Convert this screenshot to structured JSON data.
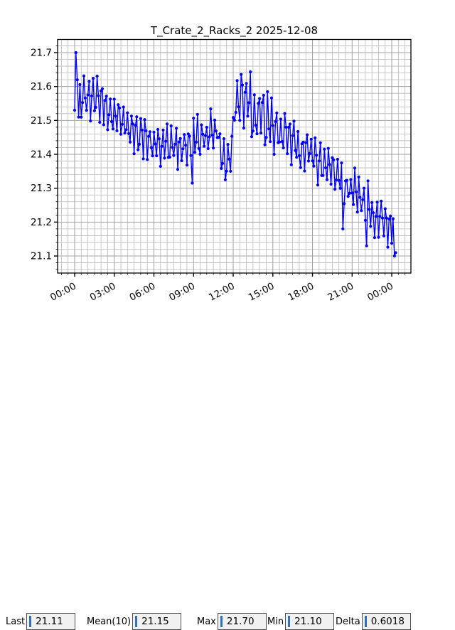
{
  "title": "T_Crate_2_Racks_2 2025-12-08",
  "chart_data": {
    "type": "line",
    "title": "T_Crate_2_Racks_2 2025-12-08",
    "series_name": "T_Crate_2_Racks_2",
    "line_color": "#0000ff",
    "marker": "circle",
    "grid": {
      "major": true,
      "minor": true,
      "color": "#a6a6a6"
    },
    "xlabel": "",
    "ylabel": "",
    "xlim_hours": [
      -1.29,
      25.45
    ],
    "ylim": [
      21.0497,
      21.7388
    ],
    "x_ticks": {
      "hours": [
        0,
        3,
        6,
        9,
        12,
        15,
        18,
        21,
        24
      ],
      "labels": [
        "00:00",
        "03:00",
        "06:00",
        "09:00",
        "12:00",
        "15:00",
        "18:00",
        "21:00",
        "00:00"
      ],
      "minor_step_hours": 0.5
    },
    "y_ticks": {
      "values": [
        21.1,
        21.2,
        21.3,
        21.4,
        21.5,
        21.6,
        21.7
      ],
      "labels": [
        "21.1",
        "21.2",
        "21.3",
        "21.4",
        "21.5",
        "21.6",
        "21.7"
      ],
      "minor_step": 0.02
    },
    "start_hour": 0,
    "end_hour": 24.3,
    "sample_step_min": 6,
    "seed": 12,
    "oscillation": {
      "phase_step_rad": 1.9,
      "phase_offset_rad": 0.6,
      "sine_weight": 0.85,
      "jitter_weight": 0.9
    },
    "value_clamp": [
      21.1,
      21.7
    ],
    "envelope_hour_mid_amp": [
      [
        0,
        21.58,
        0.065
      ],
      [
        1,
        21.565,
        0.065
      ],
      [
        2,
        21.555,
        0.065
      ],
      [
        3,
        21.525,
        0.065
      ],
      [
        4,
        21.49,
        0.065
      ],
      [
        5,
        21.46,
        0.06
      ],
      [
        6,
        21.44,
        0.06
      ],
      [
        7,
        21.425,
        0.06
      ],
      [
        8,
        21.42,
        0.06
      ],
      [
        9,
        21.435,
        0.06
      ],
      [
        10,
        21.46,
        0.06
      ],
      [
        10.8,
        21.48,
        0.055
      ],
      [
        11.1,
        21.4,
        0.05
      ],
      [
        11.8,
        21.38,
        0.05
      ],
      [
        12.1,
        21.55,
        0.07
      ],
      [
        12.6,
        21.575,
        0.08
      ],
      [
        13.5,
        21.535,
        0.09
      ],
      [
        14.5,
        21.51,
        0.08
      ],
      [
        15.5,
        21.475,
        0.07
      ],
      [
        16.5,
        21.435,
        0.065
      ],
      [
        17.5,
        21.41,
        0.065
      ],
      [
        18.5,
        21.385,
        0.06
      ],
      [
        19.5,
        21.35,
        0.06
      ],
      [
        20.5,
        21.31,
        0.06
      ],
      [
        21.5,
        21.275,
        0.06
      ],
      [
        22.5,
        21.235,
        0.06
      ],
      [
        23.3,
        21.21,
        0.055
      ],
      [
        24.0,
        21.175,
        0.045
      ],
      [
        24.3,
        21.12,
        0.025
      ]
    ],
    "head_values": [
      21.53,
      21.7,
      21.62,
      21.51
    ],
    "tail_values": [
      21.21,
      21.1,
      21.11
    ],
    "spot_overrides_hour_value": [
      [
        8.9,
        21.315
      ],
      [
        11.4,
        21.325
      ],
      [
        20.3,
        21.18
      ],
      [
        22.1,
        21.13
      ]
    ]
  },
  "stats": {
    "last": {
      "label": "Last",
      "value": "21.11"
    },
    "mean": {
      "label": "Mean(10)",
      "value": "21.15"
    },
    "max": {
      "label": "Max",
      "value": "21.70"
    },
    "min": {
      "label": "Min",
      "value": "21.10"
    },
    "delta": {
      "label": "Delta",
      "value": "0.6018"
    }
  },
  "colors": {
    "line": "#0000ff",
    "grid_major": "#a0a0a0",
    "grid_minor": "#b8b8b8",
    "axis": "#000000",
    "field_bg": "#f1f1f1",
    "field_border": "#4d4d4d",
    "text_cursor": "#2e72b8"
  }
}
